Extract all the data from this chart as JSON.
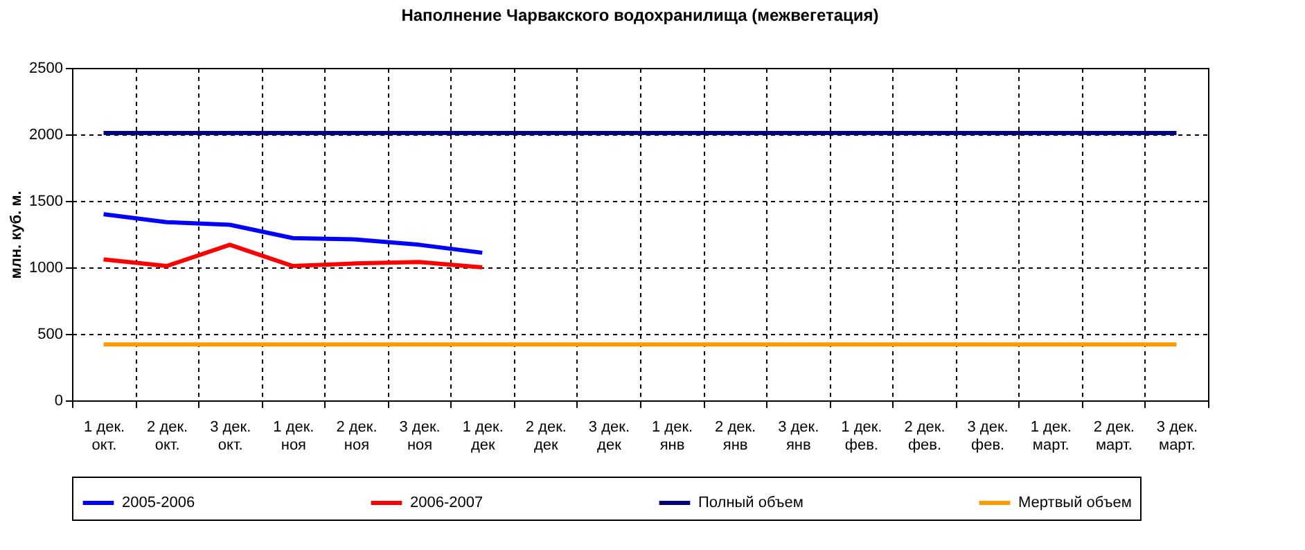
{
  "chart_data": {
    "type": "line",
    "title": "Наполнение Чарвакского водохранилища  (межвегетация)",
    "ylabel": "млн. куб. м.",
    "categories": [
      "1 дек.\nокт.",
      "2 дек.\nокт.",
      "3 дек.\nокт.",
      "1 дек.\nноя",
      "2 дек.\nноя",
      "3 дек.\nноя",
      "1 дек.\nдек",
      "2 дек.\nдек",
      "3 дек.\nдек",
      "1 дек.\nянв",
      "2 дек.\nянв",
      "3 дек.\nянв",
      "1 дек.\nфев.",
      "2 дек.\nфев.",
      "3 дек.\nфев.",
      "1 дек.\nмарт.",
      "2 дек.\nмарт.",
      "3 дек.\nмарт."
    ],
    "series": [
      {
        "name": "2005-2006",
        "color": "#0000ff",
        "values": [
          1400,
          1340,
          1320,
          1220,
          1210,
          1170,
          1110,
          null,
          null,
          null,
          null,
          null,
          null,
          null,
          null,
          null,
          null,
          null
        ]
      },
      {
        "name": "2006-2007",
        "color": "#ff0000",
        "values": [
          1060,
          1010,
          1170,
          1010,
          1030,
          1040,
          1000,
          null,
          null,
          null,
          null,
          null,
          null,
          null,
          null,
          null,
          null,
          null
        ]
      },
      {
        "name": "Полный объем",
        "color": "#000080",
        "values": [
          2010,
          2010,
          2010,
          2010,
          2010,
          2010,
          2010,
          2010,
          2010,
          2010,
          2010,
          2010,
          2010,
          2010,
          2010,
          2010,
          2010,
          2010
        ]
      },
      {
        "name": "Мертвый объем",
        "color": "#ff9900",
        "values": [
          420,
          420,
          420,
          420,
          420,
          420,
          420,
          420,
          420,
          420,
          420,
          420,
          420,
          420,
          420,
          420,
          420,
          420
        ]
      }
    ],
    "ylim": [
      0,
      2500
    ],
    "yticks": [
      0,
      500,
      1000,
      1500,
      2000,
      2500
    ],
    "grid": true,
    "legend": "bottom",
    "line_style": "solid",
    "marker": "none"
  }
}
